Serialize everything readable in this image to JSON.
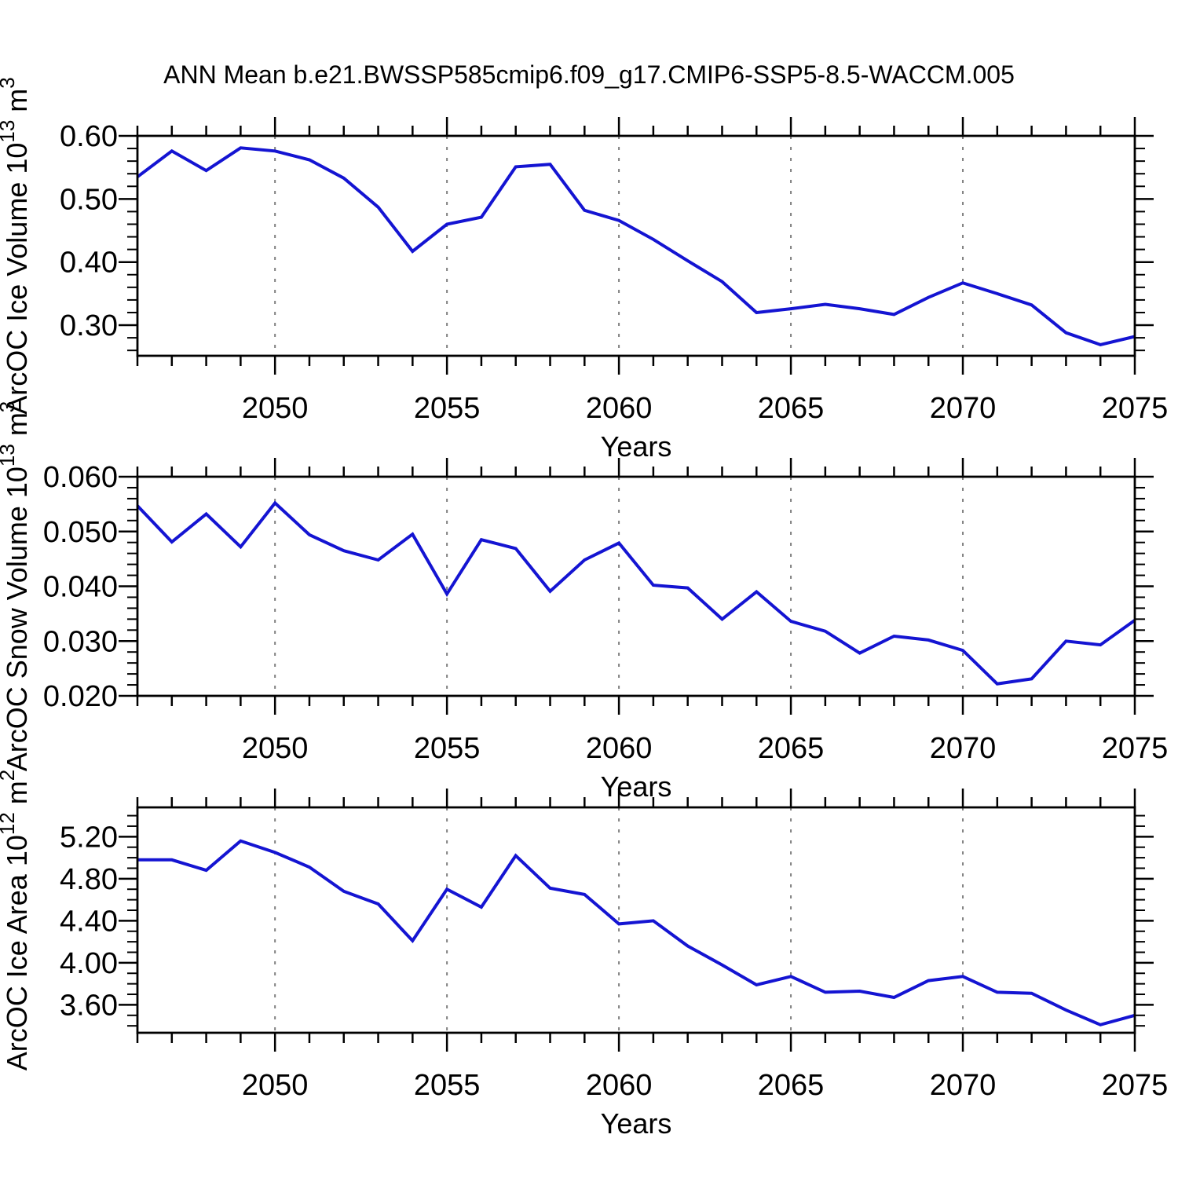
{
  "title": "ANN Mean b.e21.BWSSP585cmip6.f09_g17.CMIP6-SSP5-8.5-WACCM.005",
  "colors": {
    "background": "#ffffff",
    "line": "#1414d2",
    "axis": "#000000",
    "grid": "#808080",
    "text": "#000000"
  },
  "x_axis": {
    "label": "Years",
    "min": 2046,
    "max": 2075,
    "major_ticks": [
      2050,
      2055,
      2060,
      2065,
      2070,
      2075
    ],
    "major_tick_labels": [
      "2050",
      "2055",
      "2060",
      "2065",
      "2070",
      "2075"
    ],
    "minor_step": 1,
    "grid": "vertical dashed lines at major ticks"
  },
  "years": [
    2046,
    2047,
    2048,
    2049,
    2050,
    2051,
    2052,
    2053,
    2054,
    2055,
    2056,
    2057,
    2058,
    2059,
    2060,
    2061,
    2062,
    2063,
    2064,
    2065,
    2066,
    2067,
    2068,
    2069,
    2070,
    2071,
    2072,
    2073,
    2074,
    2075
  ],
  "chart_data": [
    {
      "type": "line",
      "series_name": "ArcOC Ice Volume",
      "ylabel": "ArcOC Ice Volume 10^13 m^3",
      "ylabel_parts": [
        {
          "t": "ArcOC Ice Volume 10"
        },
        {
          "sup": "13"
        },
        {
          "t": " m"
        },
        {
          "sup": "3"
        }
      ],
      "xlabel": "Years",
      "ylim": [
        0.2515,
        0.6
      ],
      "ytick_values": [
        0.3,
        0.4,
        0.5,
        0.6
      ],
      "ytick_labels": [
        "0.30",
        "0.40",
        "0.50",
        "0.60"
      ],
      "y_minor_step": 0.02,
      "values": [
        0.535,
        0.576,
        0.545,
        0.581,
        0.576,
        0.562,
        0.533,
        0.487,
        0.417,
        0.46,
        0.471,
        0.551,
        0.555,
        0.482,
        0.466,
        0.436,
        0.402,
        0.369,
        0.32,
        0.326,
        0.333,
        0.326,
        0.317,
        0.344,
        0.367,
        0.35,
        0.332,
        0.288,
        0.269,
        0.282
      ]
    },
    {
      "type": "line",
      "series_name": "ArcOC Snow Volume",
      "ylabel": "ArcOC Snow Volume 10^13 m^3",
      "ylabel_parts": [
        {
          "t": "ArcOC Snow Volume 10"
        },
        {
          "sup": "13"
        },
        {
          "t": " m"
        },
        {
          "sup": "3"
        }
      ],
      "xlabel": "Years",
      "ylim": [
        0.02,
        0.06
      ],
      "ytick_values": [
        0.02,
        0.03,
        0.04,
        0.05,
        0.06
      ],
      "ytick_labels": [
        "0.020",
        "0.030",
        "0.040",
        "0.050",
        "0.060"
      ],
      "y_minor_step": 0.002,
      "values": [
        0.0547,
        0.0481,
        0.0532,
        0.0472,
        0.0552,
        0.0494,
        0.0465,
        0.0448,
        0.0495,
        0.0386,
        0.0485,
        0.0469,
        0.0391,
        0.0448,
        0.0479,
        0.0402,
        0.0397,
        0.034,
        0.039,
        0.0336,
        0.0318,
        0.0278,
        0.0309,
        0.0302,
        0.0283,
        0.0222,
        0.0231,
        0.03,
        0.0293,
        0.0338
      ]
    },
    {
      "type": "line",
      "series_name": "ArcOC Ice Area",
      "ylabel": "ArcOC Ice Area 10^12 m^2",
      "ylabel_parts": [
        {
          "t": "ArcOC Ice Area 10"
        },
        {
          "sup": "12"
        },
        {
          "t": " m"
        },
        {
          "sup": "2"
        }
      ],
      "xlabel": "Years",
      "ylim": [
        3.334,
        5.479
      ],
      "ytick_values": [
        3.6,
        4.0,
        4.4,
        4.8,
        5.2
      ],
      "ytick_labels": [
        "3.60",
        "4.00",
        "4.40",
        "4.80",
        "5.20"
      ],
      "y_minor_step": 0.1,
      "values": [
        4.98,
        4.98,
        4.88,
        5.16,
        5.05,
        4.91,
        4.68,
        4.56,
        4.21,
        4.7,
        4.53,
        5.02,
        4.71,
        4.65,
        4.37,
        4.4,
        4.16,
        3.98,
        3.79,
        3.87,
        3.72,
        3.73,
        3.67,
        3.83,
        3.87,
        3.72,
        3.71,
        3.55,
        3.41,
        3.5
      ]
    }
  ]
}
